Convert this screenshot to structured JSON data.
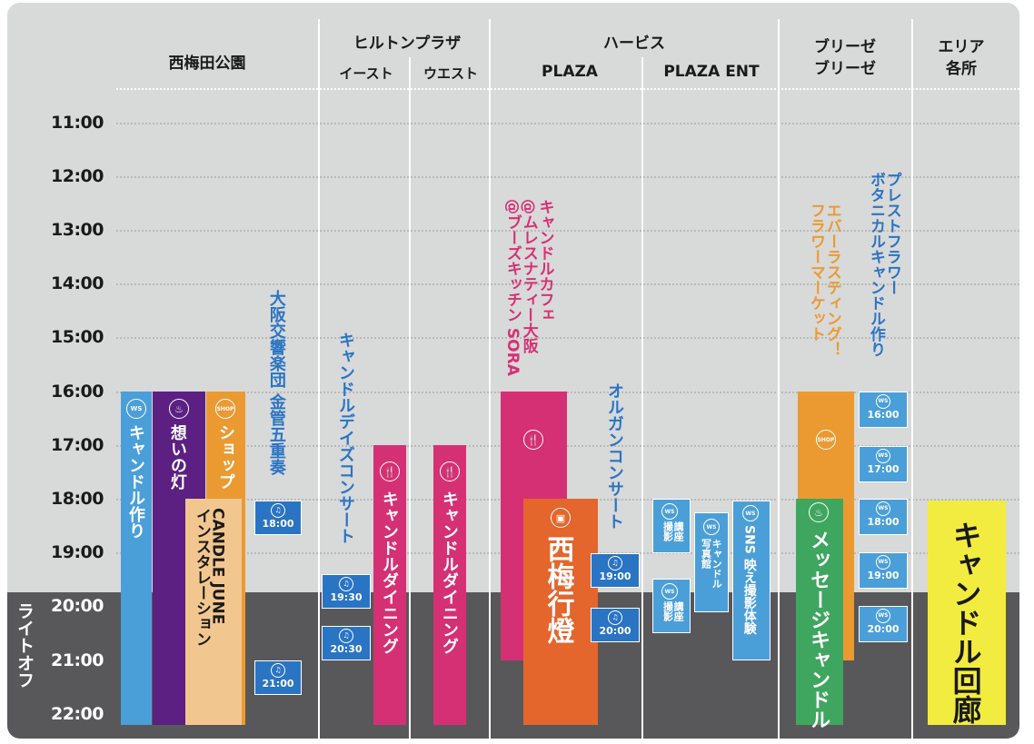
{
  "colors": {
    "board": "#d8d9d9",
    "night": "#58585a",
    "blue": "#4b9fd8",
    "purple": "#5b2081",
    "orange": "#eb9a31",
    "peach": "#f2c78f",
    "magenta": "#d63074",
    "deeporange": "#e4662d",
    "green": "#3fa65f",
    "yellow": "#f3ec40",
    "textblue": "#2a74c4"
  },
  "header": {
    "nishiumeda": "西梅田公園",
    "hilton": "ヒルトンプラザ",
    "hilton_east": "イースト",
    "hilton_west": "ウエスト",
    "herbis": "ハービス",
    "herbis_plaza": "PLAZA",
    "herbis_ent": "PLAZA ENT",
    "breeze1": "ブリーゼ",
    "breeze2": "ブリーゼ",
    "area1": "エリア",
    "area2": "各所"
  },
  "times": [
    "11:00",
    "12:00",
    "13:00",
    "14:00",
    "15:00",
    "16:00",
    "17:00",
    "18:00",
    "19:00",
    "20:00",
    "21:00",
    "22:00"
  ],
  "lightoff": "ライトオフ",
  "events": {
    "candle_making": "キャンドル作り",
    "omoi_no_hi": "想いの灯",
    "shop": "ショップ",
    "candle_june": "CANDLE JUNE\nインスタレーション",
    "osaka_orchestra": "大阪交響楽団 金管五重奏",
    "candle_days_concert": "キャンドルデイズコンサート",
    "candle_dining_east": "キャンドルダイニング",
    "candle_dining_west": "キャンドルダイニング",
    "candle_cafe": "キャンドルカフェ\n@ムレスナティー大阪\n@ブーズキッチン SORA",
    "nishiumeda_lantern": "西梅行燈",
    "organ_concert": "オルガンコンサート",
    "lecture_photo_1": "講座\n撮影",
    "lecture_photo_2": "講座\n撮影",
    "candle_photo_studio": "キャンドル\n写真館",
    "sns_photo": "SNS 映え撮影体験",
    "everlasting_flower": "エバーラスティング！\nフラワーマーケット",
    "message_candle": "メッセージキャンドル",
    "pressed_flower": "プレストフラワー\nボタニカルキャンドル作り",
    "candle_corridor": "キャンドル回廊"
  },
  "chips": {
    "orch_18": "18:00",
    "orch_21": "21:00",
    "east_1930": "19:30",
    "east_2030": "20:30",
    "organ_19": "19:00",
    "organ_20": "20:00",
    "ws_16": "16:00",
    "ws_17": "17:00",
    "ws_18": "18:00",
    "ws_19": "19:00",
    "ws_20": "20:00"
  },
  "badges": {
    "ws": "WS",
    "shop": "SHOP"
  }
}
